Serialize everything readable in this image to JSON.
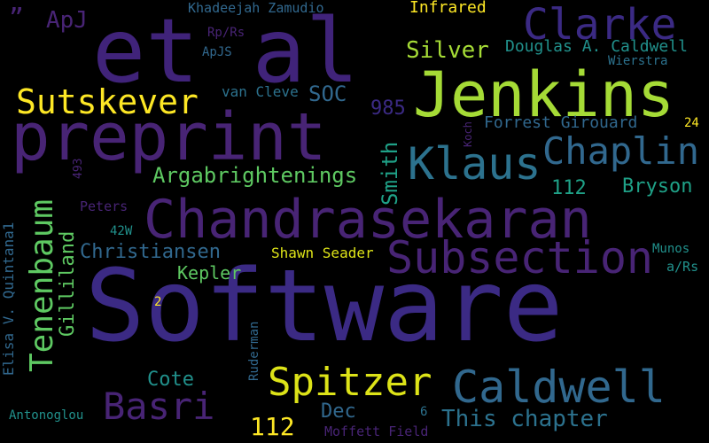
{
  "colors": {
    "background": "#000000",
    "dark_purple": "#482475",
    "indigo": "#3b2a84",
    "violet": "#40237a",
    "slate_blue": "#31688e",
    "teal_blue": "#2c728e",
    "teal": "#21918c",
    "green_teal": "#1fa187",
    "green": "#5ec962",
    "lime": "#a5db36",
    "yellow": "#dde318",
    "bright_yellow": "#fde725"
  },
  "words": {
    "software": "Software",
    "et_al": "et al",
    "preprint": "preprint",
    "jenkins": "Jenkins",
    "chandrasekaran": "Chandrasekaran",
    "clarke": "Clarke",
    "klaus": "Klaus",
    "subsection": "Subsection",
    "caldwell": "Caldwell",
    "spitzer": "Spitzer",
    "chaplin": "Chaplin",
    "sutskever": "Sutskever",
    "basri": "Basri",
    "tenenbaum": "Tenenbaum",
    "argabrightenings": "Argabrightenings",
    "christiansen": "Christiansen",
    "gilliland": "Gilliland",
    "this_chapter": "This chapter",
    "silver": "Silver",
    "douglas_caldwell": "Douglas A. Caldwell",
    "forrest_girouard": "Forrest Girouard",
    "smith": "Smith",
    "soc": "SOC",
    "apj": "ApJ",
    "quote_mark": "”",
    "bryson": "Bryson",
    "n112_a": "112",
    "n112_b": "112",
    "n985": "985",
    "cote": "Cote",
    "dec": "Dec",
    "kepler": "Kepler",
    "shawn_seader": "Shawn Seader",
    "van_cleve": "van Cleve",
    "infrared": "Infrared",
    "khadeejah_zamudio": "Khadeejah Zamudio",
    "rp_rs": "Rp/Rs",
    "apjs": "ApJS",
    "wierstra": "Wierstra",
    "koch": "Koch",
    "n24": "24",
    "n493": "493",
    "peters": "Peters",
    "n42w": "42W",
    "elisa_quintana": "Elisa V. Quintana1",
    "munos": "Munos",
    "a_rs": "a/Rs",
    "n2": "2",
    "ruderman": "Ruderman",
    "antonoglou": "Antonoglou",
    "n6": "6",
    "moffett_field": "Moffett Field"
  }
}
